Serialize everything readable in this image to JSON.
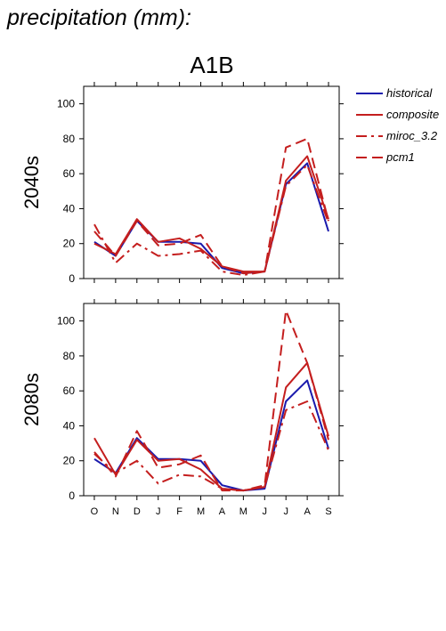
{
  "figure_title": "precipitation (mm):",
  "scenario": "A1B",
  "legend": [
    {
      "label": "historical",
      "color": "#1a1aad",
      "dash": "solid"
    },
    {
      "label": "composite",
      "color": "#c41e1e",
      "dash": "solid"
    },
    {
      "label": "miroc_3.2",
      "color": "#c41e1e",
      "dash": "dashdot"
    },
    {
      "label": "pcm1",
      "color": "#c41e1e",
      "dash": "dashed"
    }
  ],
  "chart_data": [
    {
      "type": "line",
      "panel_label": "2040s",
      "categories": [
        "O",
        "N",
        "D",
        "J",
        "F",
        "M",
        "A",
        "M",
        "J",
        "J",
        "A",
        "S"
      ],
      "ylim": [
        0,
        110
      ],
      "yticks": [
        0,
        20,
        40,
        60,
        80,
        100
      ],
      "series": [
        {
          "name": "historical",
          "values": [
            21,
            13,
            33,
            21,
            21,
            20,
            6,
            3,
            4,
            54,
            66,
            27
          ]
        },
        {
          "name": "composite",
          "values": [
            20,
            14,
            34,
            21,
            23,
            17,
            7,
            4,
            4,
            56,
            70,
            34
          ]
        },
        {
          "name": "miroc_3.2",
          "values": [
            31,
            9,
            20,
            13,
            14,
            16,
            4,
            2,
            4,
            53,
            65,
            32
          ]
        },
        {
          "name": "pcm1",
          "values": [
            27,
            13,
            33,
            19,
            20,
            25,
            7,
            3,
            4,
            75,
            80,
            33
          ]
        }
      ]
    },
    {
      "type": "line",
      "panel_label": "2080s",
      "categories": [
        "O",
        "N",
        "D",
        "J",
        "F",
        "M",
        "A",
        "M",
        "J",
        "J",
        "A",
        "S"
      ],
      "ylim": [
        0,
        110
      ],
      "yticks": [
        0,
        20,
        40,
        60,
        80,
        100
      ],
      "series": [
        {
          "name": "historical",
          "values": [
            21,
            13,
            33,
            21,
            21,
            20,
            6,
            3,
            4,
            54,
            66,
            27
          ]
        },
        {
          "name": "composite",
          "values": [
            33,
            12,
            32,
            20,
            21,
            15,
            4,
            3,
            5,
            62,
            76,
            34
          ]
        },
        {
          "name": "miroc_3.2",
          "values": [
            24,
            13,
            20,
            7,
            12,
            11,
            4,
            3,
            5,
            49,
            54,
            26
          ]
        },
        {
          "name": "pcm1",
          "values": [
            25,
            11,
            37,
            16,
            18,
            23,
            3,
            3,
            6,
            106,
            76,
            32
          ]
        }
      ]
    }
  ]
}
